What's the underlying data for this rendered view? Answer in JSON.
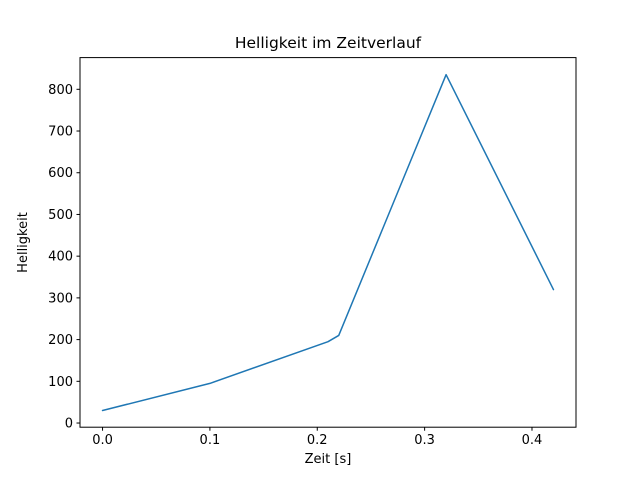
{
  "chart_data": {
    "type": "line",
    "title": "Helligkeit im Zeitverlauf",
    "xlabel": "Zeit [s]",
    "ylabel": "Helligkeit",
    "x": [
      0.0,
      0.1,
      0.21,
      0.22,
      0.32,
      0.42
    ],
    "y": [
      30,
      95,
      195,
      210,
      835,
      320
    ],
    "xlim": [
      -0.021,
      0.441
    ],
    "ylim": [
      -10,
      876
    ],
    "xticks": [
      0.0,
      0.1,
      0.2,
      0.3,
      0.4
    ],
    "xtick_labels": [
      "0.0",
      "0.1",
      "0.2",
      "0.3",
      "0.4"
    ],
    "yticks": [
      0,
      100,
      200,
      300,
      400,
      500,
      600,
      700,
      800
    ],
    "ytick_labels": [
      "0",
      "100",
      "200",
      "300",
      "400",
      "500",
      "600",
      "700",
      "800"
    ],
    "line_color": "#1f77b4",
    "line_width": 1.5,
    "axes_color": "#000000",
    "background": "#ffffff",
    "grid": false,
    "legend_position": "none"
  }
}
